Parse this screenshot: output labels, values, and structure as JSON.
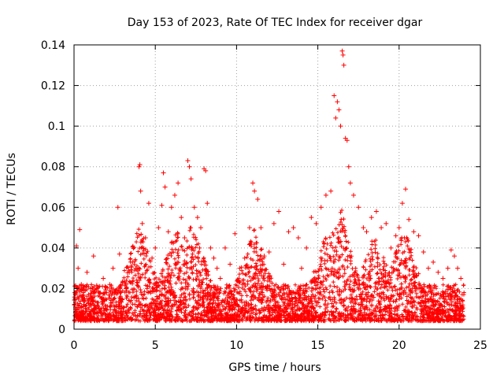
{
  "chart_data": {
    "type": "scatter",
    "title": "Day 153 of 2023, Rate Of TEC Index for receiver dgar",
    "xlabel": "GPS time / hours",
    "ylabel": "ROTI / TECUs",
    "xlim": [
      0,
      25
    ],
    "ylim": [
      0,
      0.14
    ],
    "x_ticks": [
      0,
      5,
      10,
      15,
      20,
      25
    ],
    "x_tick_labels": [
      "0",
      "5",
      "10",
      "15",
      "20",
      "25"
    ],
    "y_ticks": [
      0,
      0.02,
      0.04,
      0.06,
      0.08,
      0.1,
      0.12,
      0.14
    ],
    "y_tick_labels": [
      "0",
      "0.02",
      "0.04",
      "0.06",
      "0.08",
      "0.1",
      "0.12",
      "0.14"
    ],
    "grid": true,
    "marker": "+",
    "color": "#ff0000",
    "series": [
      {
        "name": "ROTI",
        "x": [
          0.05,
          0.15,
          0.25,
          0.35,
          0.45,
          0.6,
          0.8,
          1.0,
          1.2,
          1.4,
          1.6,
          1.8,
          2.0,
          2.2,
          2.4,
          2.6,
          2.7,
          2.8,
          3.0,
          3.2,
          3.4,
          3.6,
          3.8,
          4.0,
          4.05,
          4.1,
          4.2,
          4.4,
          4.6,
          4.8,
          5.0,
          5.2,
          5.4,
          5.5,
          5.6,
          5.8,
          6.0,
          6.2,
          6.4,
          6.6,
          6.8,
          7.0,
          7.1,
          7.2,
          7.4,
          7.6,
          7.8,
          8.0,
          8.1,
          8.2,
          8.4,
          8.6,
          8.8,
          9.0,
          9.3,
          9.6,
          9.9,
          10.2,
          10.5,
          10.8,
          11.0,
          11.1,
          11.3,
          11.5,
          11.7,
          12.0,
          12.3,
          12.6,
          12.9,
          13.2,
          13.5,
          13.8,
          14.0,
          14.3,
          14.6,
          14.9,
          15.2,
          15.5,
          15.8,
          16.0,
          16.1,
          16.2,
          16.3,
          16.4,
          16.5,
          16.55,
          16.6,
          16.7,
          16.8,
          16.9,
          17.0,
          17.2,
          17.5,
          17.8,
          18.0,
          18.3,
          18.6,
          18.9,
          19.2,
          19.5,
          19.8,
          20.0,
          20.2,
          20.4,
          20.6,
          20.9,
          21.2,
          21.5,
          21.8,
          22.1,
          22.4,
          22.7,
          23.0,
          23.2,
          23.4,
          23.6,
          23.8
        ],
        "y": [
          0.018,
          0.041,
          0.03,
          0.049,
          0.022,
          0.015,
          0.028,
          0.012,
          0.036,
          0.02,
          0.016,
          0.025,
          0.018,
          0.022,
          0.03,
          0.019,
          0.06,
          0.037,
          0.023,
          0.02,
          0.028,
          0.033,
          0.03,
          0.08,
          0.081,
          0.068,
          0.052,
          0.045,
          0.062,
          0.035,
          0.04,
          0.05,
          0.061,
          0.077,
          0.07,
          0.048,
          0.06,
          0.066,
          0.072,
          0.055,
          0.045,
          0.083,
          0.08,
          0.074,
          0.06,
          0.055,
          0.05,
          0.079,
          0.078,
          0.062,
          0.04,
          0.035,
          0.03,
          0.025,
          0.04,
          0.032,
          0.047,
          0.03,
          0.035,
          0.05,
          0.072,
          0.068,
          0.064,
          0.05,
          0.036,
          0.038,
          0.052,
          0.058,
          0.032,
          0.048,
          0.05,
          0.045,
          0.03,
          0.04,
          0.055,
          0.052,
          0.06,
          0.066,
          0.068,
          0.115,
          0.104,
          0.112,
          0.108,
          0.1,
          0.137,
          0.135,
          0.13,
          0.094,
          0.093,
          0.08,
          0.072,
          0.066,
          0.06,
          0.05,
          0.048,
          0.055,
          0.058,
          0.05,
          0.052,
          0.04,
          0.046,
          0.05,
          0.062,
          0.069,
          0.054,
          0.048,
          0.046,
          0.038,
          0.03,
          0.033,
          0.028,
          0.025,
          0.03,
          0.039,
          0.036,
          0.03,
          0.025
        ]
      }
    ]
  }
}
